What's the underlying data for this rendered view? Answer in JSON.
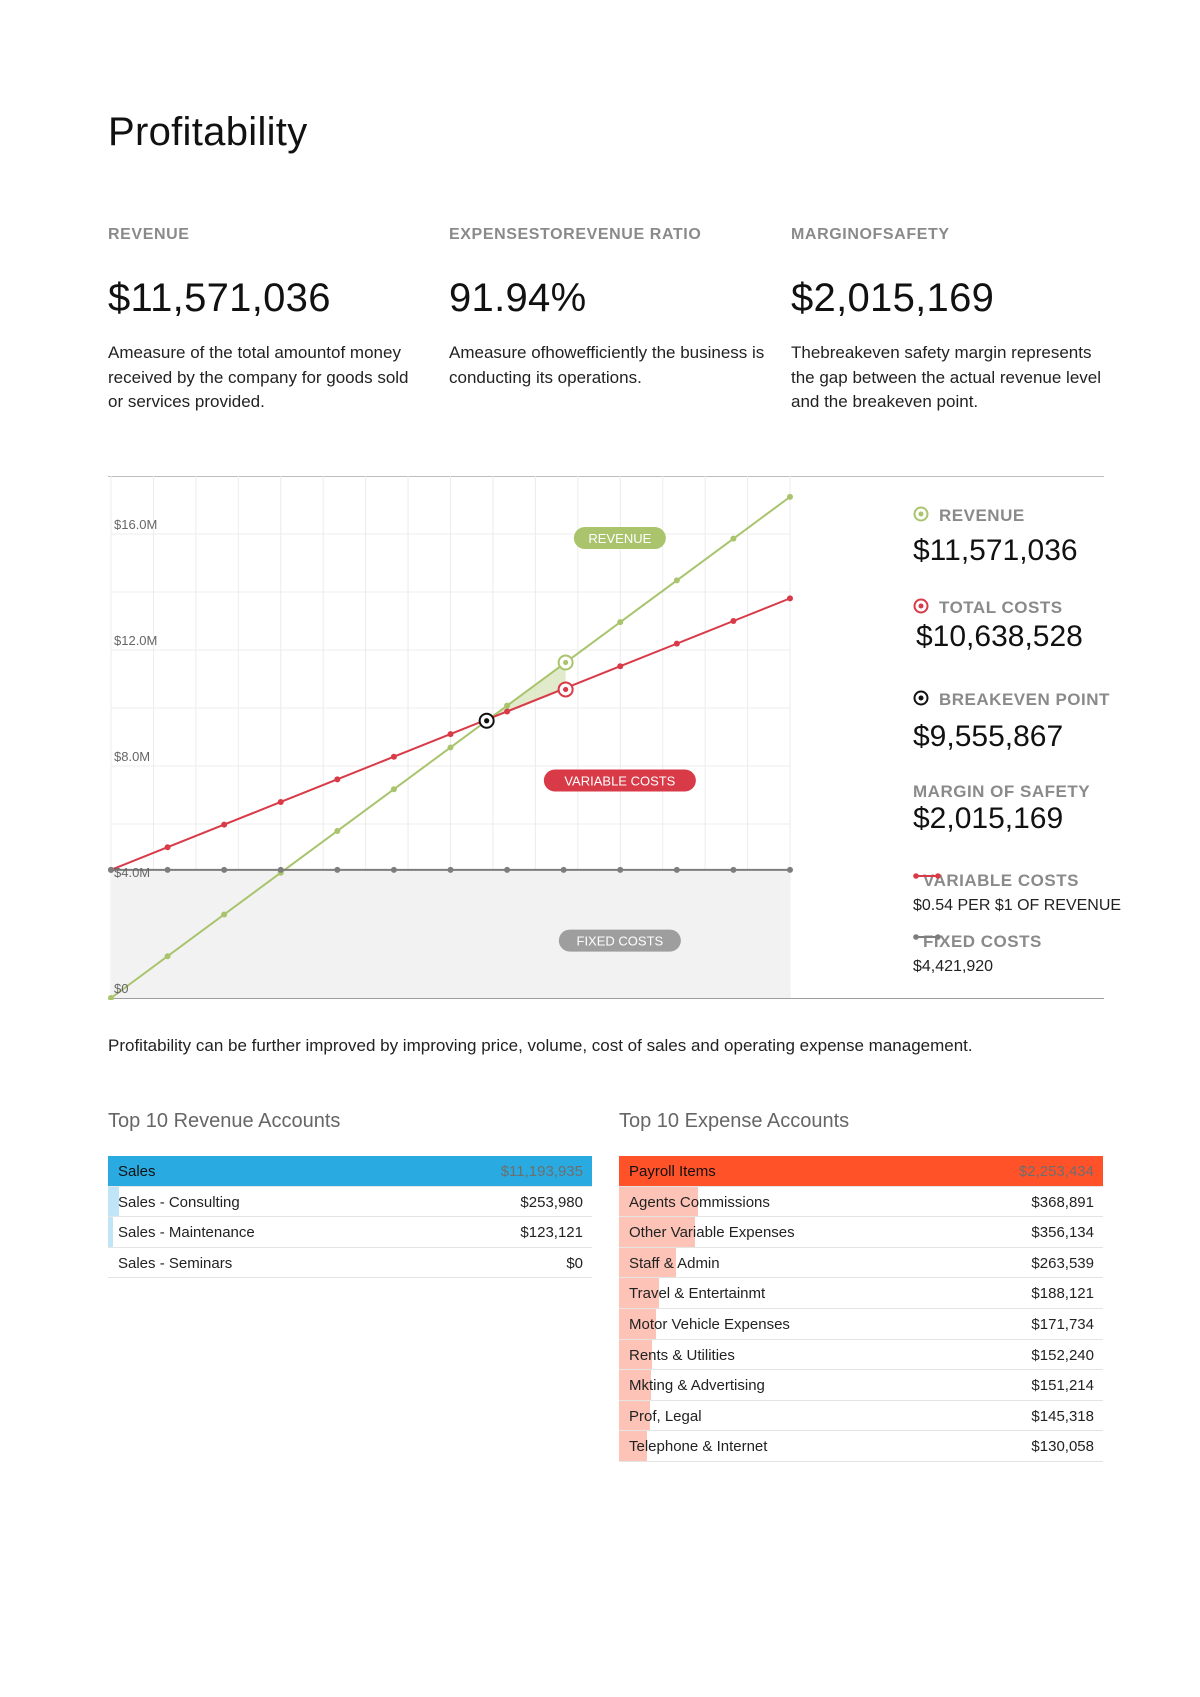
{
  "page": {
    "title": "Profitability",
    "footnote": "Profitability can be further improved by improving price, volume, cost of sales and operating expense management."
  },
  "kpis": [
    {
      "label": "REVENUE",
      "value": "$11,571,036",
      "description": "Ameasure of the total amountof money received by the company for goods sold or services provided."
    },
    {
      "label": "EXPENSESTOREVENUE RATIO",
      "value": "91.94%",
      "description": "Ameasure ofhowefficiently the business is conducting its operations."
    },
    {
      "label": "MARGINOFSAFETY",
      "value": "$2,015,169",
      "description": "Thebreakeven safety margin represents the gap between the actual revenue level and the breakeven point."
    }
  ],
  "legend": {
    "revenue_label": "REVENUE",
    "revenue_value": "$11,571,036",
    "total_costs_label": "TOTAL COSTS",
    "total_costs_value": "$10,638,528",
    "breakeven_label": "BREAKEVEN POINT",
    "breakeven_value": "$9,555,867",
    "margin_label": "MARGIN OF SAFETY",
    "margin_value": "$2,015,169",
    "variable_label": "VARIABLE COSTS",
    "variable_sub": "$0.54 PER $1 OF REVENUE",
    "fixed_label": "FIXED COSTS",
    "fixed_sub": "$4,421,920"
  },
  "colors": {
    "revenue": "#a9c46c",
    "total_costs": "#d93a47",
    "fixed": "#7d7d7d",
    "breakeven": "#111111",
    "revenue_table": "#29abe2",
    "expense_table": "#ff5229",
    "revenue_table_light": "#bfe5f7",
    "expense_table_light": "#fcc3b6"
  },
  "chart_data": {
    "type": "line",
    "title": "",
    "xlabel": "",
    "ylabel": "",
    "ylim": [
      0,
      18
    ],
    "y_ticks": [
      0,
      4,
      8,
      12,
      16
    ],
    "y_tick_labels": [
      "$0",
      "$4.0M",
      "$8.0M",
      "$12.0M",
      "$16.0M"
    ],
    "x_revenue_millions": [
      0,
      1.44,
      2.88,
      4.32,
      5.76,
      7.2,
      8.64,
      10.08,
      11.52,
      12.96,
      14.4,
      15.84,
      17.28
    ],
    "series": [
      {
        "name": "Revenue",
        "values": [
          0,
          1.44,
          2.88,
          4.32,
          5.76,
          7.2,
          8.64,
          10.08,
          11.52,
          12.96,
          14.4,
          15.84,
          17.28
        ]
      },
      {
        "name": "Total Costs",
        "values": [
          4.42,
          5.2,
          5.98,
          6.76,
          7.54,
          8.32,
          9.1,
          9.88,
          10.66,
          11.44,
          12.22,
          13.0,
          13.78
        ]
      },
      {
        "name": "Fixed Costs",
        "values": [
          4.42,
          4.42,
          4.42,
          4.42,
          4.42,
          4.42,
          4.42,
          4.42,
          4.42,
          4.42,
          4.42,
          4.42,
          4.42
        ]
      }
    ],
    "markers": [
      {
        "name": "Breakeven Point",
        "x": 9.56,
        "y": 9.56
      },
      {
        "name": "Revenue",
        "x": 11.57,
        "y": 11.57
      },
      {
        "name": "Total Costs",
        "x": 11.57,
        "y": 10.64
      }
    ],
    "x_max": 17.28,
    "tags": [
      {
        "text": "REVENUE",
        "series": "revenue",
        "x": 12.95,
        "y": 15.86
      },
      {
        "text": "VARIABLE COSTS",
        "series": "variable",
        "x": 12.95,
        "y": 7.5
      },
      {
        "text": "FIXED COSTS",
        "series": "fixed",
        "x": 12.95,
        "y": 1.98
      }
    ]
  },
  "revenue_accounts": {
    "title": "Top 10 Revenue Accounts",
    "rows": [
      {
        "name": "Sales",
        "value": "$11,193,935",
        "share": 1.0
      },
      {
        "name": "Sales - Consulting",
        "value": "$253,980",
        "share": 0.0227
      },
      {
        "name": "Sales - Maintenance",
        "value": "$123,121",
        "share": 0.011
      },
      {
        "name": "Sales - Seminars",
        "value": "$0",
        "share": 0
      }
    ]
  },
  "expense_accounts": {
    "title": "Top 10 Expense Accounts",
    "rows": [
      {
        "name": "Payroll Items",
        "value": "$2,253,434",
        "share": 1.0
      },
      {
        "name": "Agents Commissions",
        "value": "$368,891",
        "share": 0.1637
      },
      {
        "name": "Other Variable Expenses",
        "value": "$356,134",
        "share": 0.158
      },
      {
        "name": "Staff & Admin",
        "value": "$263,539",
        "share": 0.117
      },
      {
        "name": "Travel & Entertainmt",
        "value": "$188,121",
        "share": 0.0835
      },
      {
        "name": "Motor Vehicle Expenses",
        "value": "$171,734",
        "share": 0.0762
      },
      {
        "name": "Rents & Utilities",
        "value": "$152,240",
        "share": 0.0676
      },
      {
        "name": "Mkting & Advertising",
        "value": "$151,214",
        "share": 0.0671
      },
      {
        "name": "Prof, Legal",
        "value": "$145,318",
        "share": 0.0645
      },
      {
        "name": "Telephone & Internet",
        "value": "$130,058",
        "share": 0.0577
      }
    ]
  }
}
